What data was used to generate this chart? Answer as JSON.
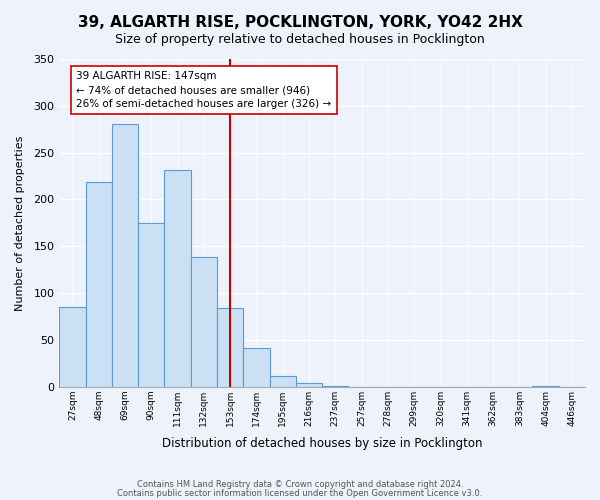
{
  "title": "39, ALGARTH RISE, POCKLINGTON, YORK, YO42 2HX",
  "subtitle": "Size of property relative to detached houses in Pocklington",
  "xlabel": "Distribution of detached houses by size in Pocklington",
  "ylabel": "Number of detached properties",
  "footnote1": "Contains HM Land Registry data © Crown copyright and database right 2024.",
  "footnote2": "Contains public sector information licensed under the Open Government Licence v3.0.",
  "bin_labels": [
    "27sqm",
    "48sqm",
    "69sqm",
    "90sqm",
    "111sqm",
    "132sqm",
    "153sqm",
    "174sqm",
    "195sqm",
    "216sqm",
    "237sqm",
    "257sqm",
    "278sqm",
    "299sqm",
    "320sqm",
    "341sqm",
    "362sqm",
    "383sqm",
    "404sqm",
    "446sqm"
  ],
  "bar_values": [
    85,
    219,
    281,
    175,
    231,
    139,
    84,
    41,
    11,
    4,
    1,
    0,
    0,
    0,
    0,
    0,
    0,
    0,
    1,
    0
  ],
  "bar_color": "#cce0f5",
  "bar_edge_color": "#5b9bd5",
  "vline_color": "#cc0000",
  "vline_idx": 6,
  "annotation_title": "39 ALGARTH RISE: 147sqm",
  "annotation_line1": "← 74% of detached houses are smaller (946)",
  "annotation_line2": "26% of semi-detached houses are larger (326) →",
  "annotation_box_color": "#ffffff",
  "annotation_box_edge": "#cc0000",
  "ylim": [
    0,
    350
  ],
  "yticks": [
    0,
    50,
    100,
    150,
    200,
    250,
    300,
    350
  ],
  "bg_color": "#eef2fa"
}
